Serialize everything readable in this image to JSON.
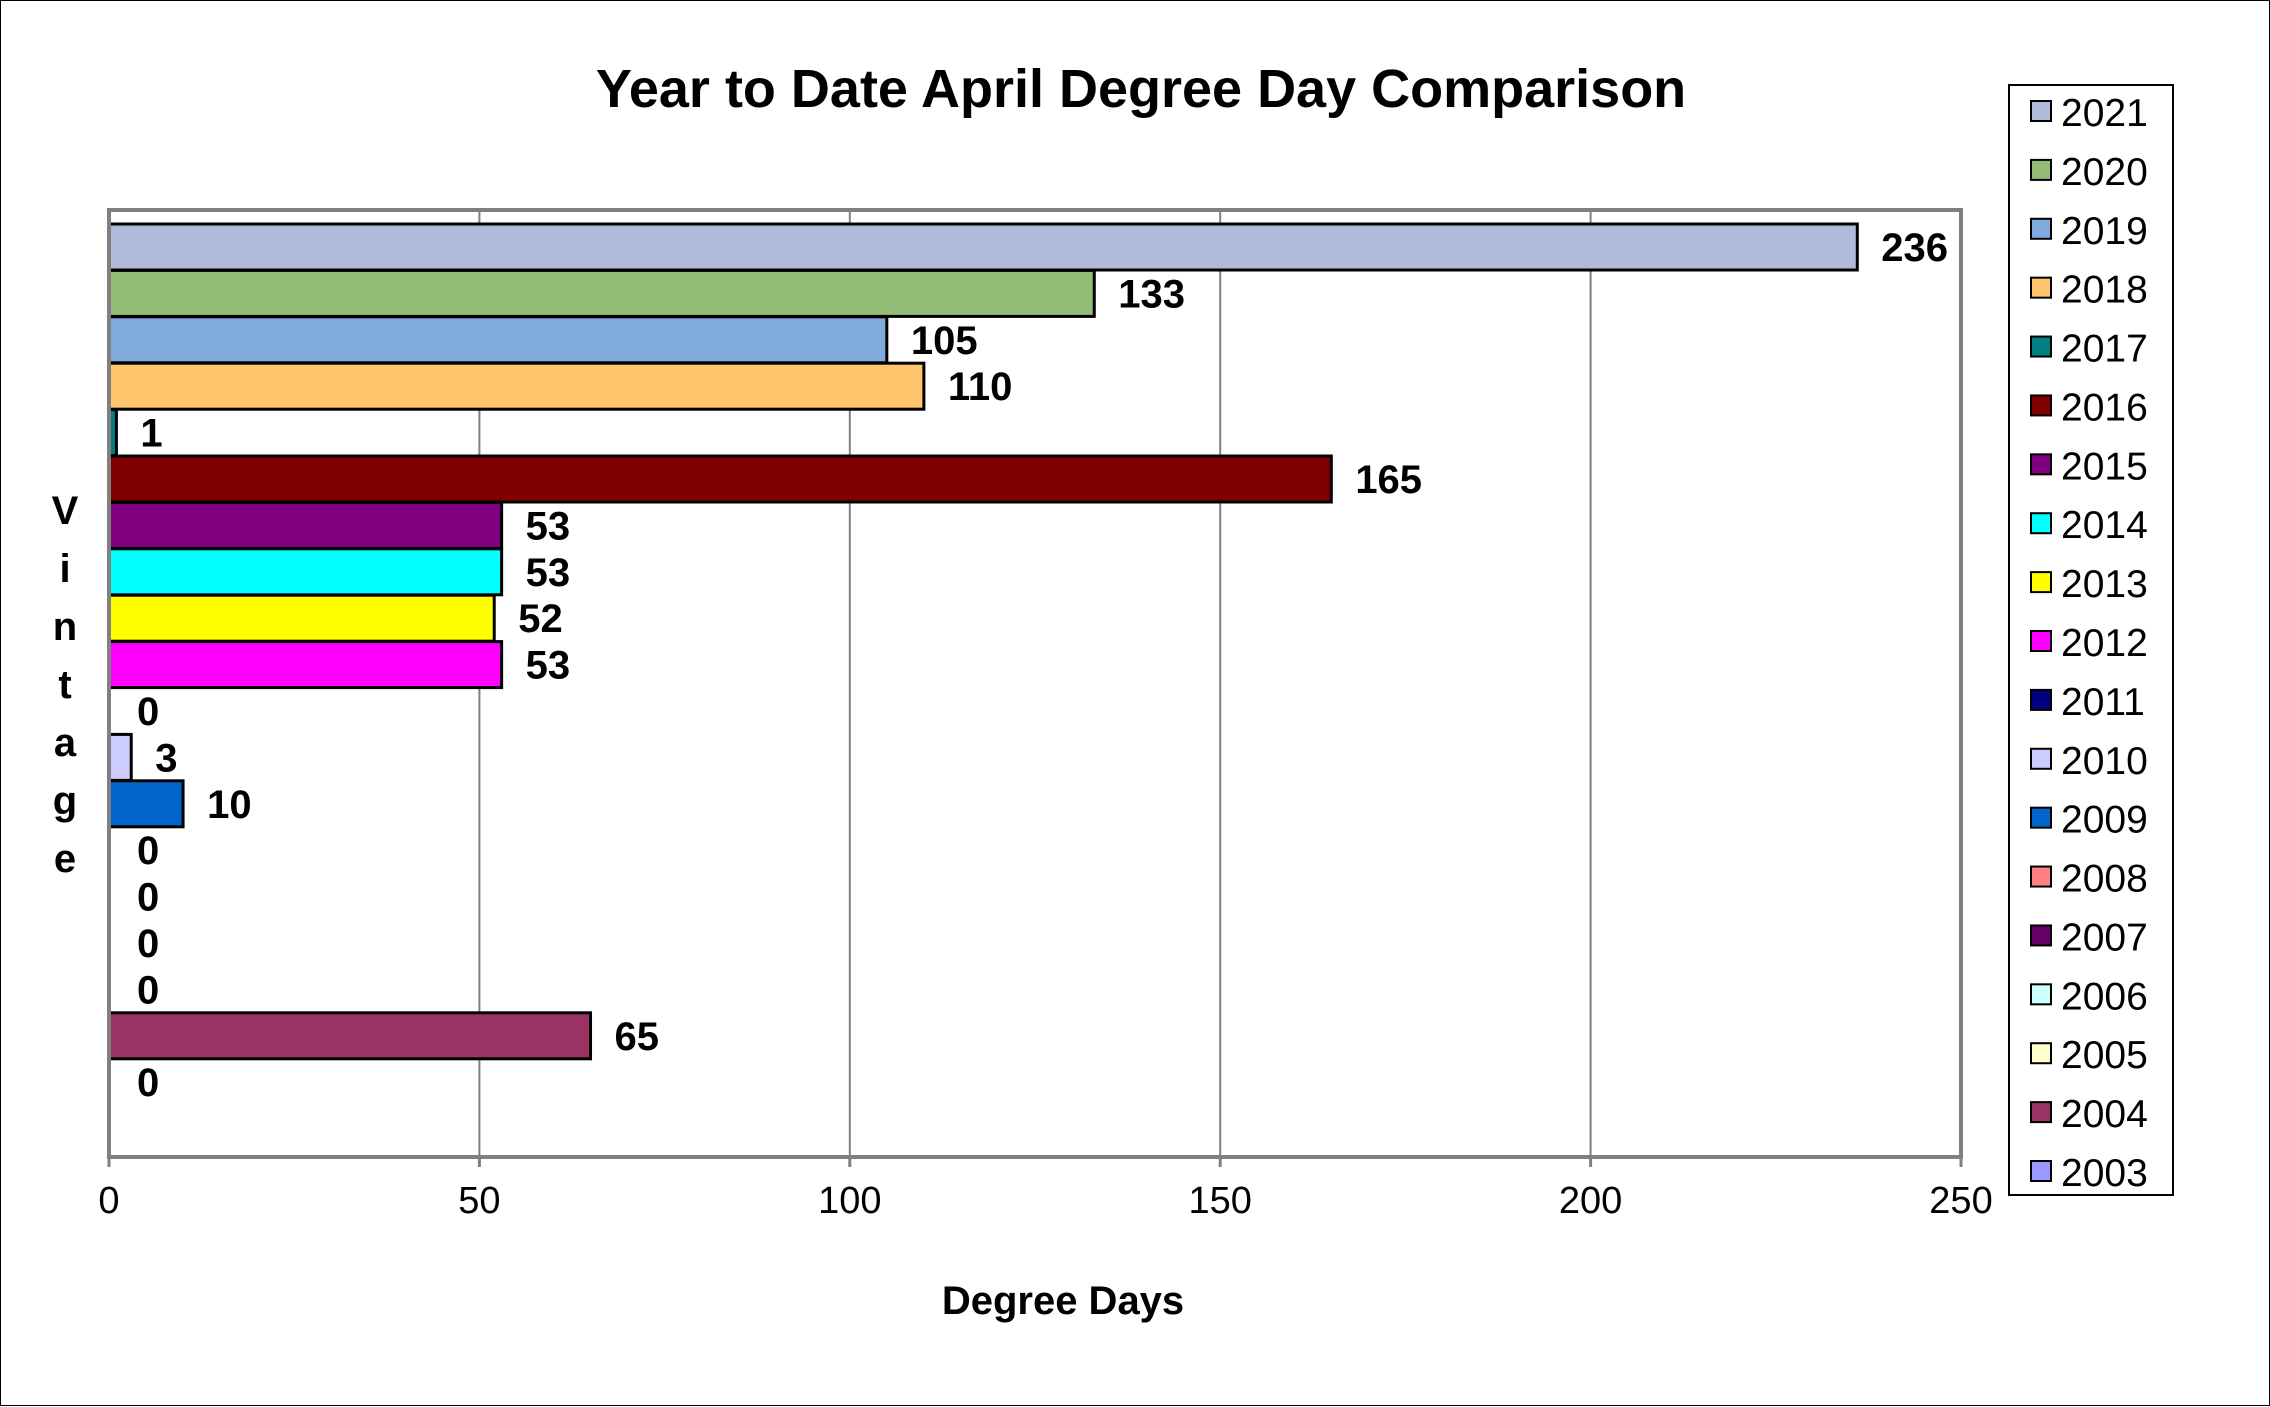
{
  "chart_data": {
    "type": "bar",
    "orientation": "horizontal",
    "title": "Year to Date April Degree Day Comparison",
    "xlabel": "Degree Days",
    "ylabel": "Vintage",
    "xlim": [
      0,
      250
    ],
    "x_ticks": [
      0,
      50,
      100,
      150,
      200,
      250
    ],
    "grid": true,
    "legend_position": "right",
    "series": [
      {
        "name": "2021",
        "value": 236,
        "color": "#B0BBDC"
      },
      {
        "name": "2020",
        "value": 133,
        "color": "#93BD77"
      },
      {
        "name": "2019",
        "value": 105,
        "color": "#80AADC"
      },
      {
        "name": "2018",
        "value": 110,
        "color": "#FFC66E"
      },
      {
        "name": "2017",
        "value": 1,
        "color": "#008080"
      },
      {
        "name": "2016",
        "value": 165,
        "color": "#800000"
      },
      {
        "name": "2015",
        "value": 53,
        "color": "#800080"
      },
      {
        "name": "2014",
        "value": 53,
        "color": "#00FFFF"
      },
      {
        "name": "2013",
        "value": 52,
        "color": "#FFFF00"
      },
      {
        "name": "2012",
        "value": 53,
        "color": "#FF00FF"
      },
      {
        "name": "2011",
        "value": 0,
        "color": "#000080"
      },
      {
        "name": "2010",
        "value": 3,
        "color": "#CCCCFF"
      },
      {
        "name": "2009",
        "value": 10,
        "color": "#0066CC"
      },
      {
        "name": "2008",
        "value": 0,
        "color": "#FF8080"
      },
      {
        "name": "2007",
        "value": 0,
        "color": "#660066"
      },
      {
        "name": "2006",
        "value": 0,
        "color": "#CCFFFF"
      },
      {
        "name": "2005",
        "value": 0,
        "color": "#FFFFCC"
      },
      {
        "name": "2004",
        "value": 65,
        "color": "#993366"
      },
      {
        "name": "2003",
        "value": 0,
        "color": "#9999FF"
      }
    ]
  }
}
